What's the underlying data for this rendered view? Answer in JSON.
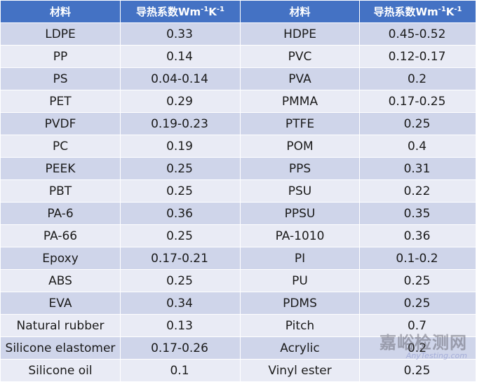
{
  "header": {
    "material_label": "材料",
    "conductivity_label": "导热系数Wm",
    "sup_m": "-1",
    "k_label": "K",
    "sup_k": "-1"
  },
  "rows": [
    {
      "left_material": "LDPE",
      "left_value": "0.33",
      "right_material": "HDPE",
      "right_value": "0.45-0.52"
    },
    {
      "left_material": "PP",
      "left_value": "0.14",
      "right_material": "PVC",
      "right_value": "0.12-0.17"
    },
    {
      "left_material": "PS",
      "left_value": "0.04-0.14",
      "right_material": "PVA",
      "right_value": "0.2"
    },
    {
      "left_material": "PET",
      "left_value": "0.29",
      "right_material": "PMMA",
      "right_value": "0.17-0.25"
    },
    {
      "left_material": "PVDF",
      "left_value": "0.19-0.23",
      "right_material": "PTFE",
      "right_value": "0.25"
    },
    {
      "left_material": "PC",
      "left_value": "0.19",
      "right_material": "POM",
      "right_value": "0.4"
    },
    {
      "left_material": "PEEK",
      "left_value": "0.25",
      "right_material": "PPS",
      "right_value": "0.31"
    },
    {
      "left_material": "PBT",
      "left_value": "0.25",
      "right_material": "PSU",
      "right_value": "0.22"
    },
    {
      "left_material": "PA-6",
      "left_value": "0.36",
      "right_material": "PPSU",
      "right_value": "0.35"
    },
    {
      "left_material": "PA-66",
      "left_value": "0.25",
      "right_material": "PA-1010",
      "right_value": "0.36"
    },
    {
      "left_material": "Epoxy",
      "left_value": "0.17-0.21",
      "right_material": "PI",
      "right_value": "0.1-0.2"
    },
    {
      "left_material": "ABS",
      "left_value": "0.25",
      "right_material": "PU",
      "right_value": "0.25"
    },
    {
      "left_material": "EVA",
      "left_value": "0.34",
      "right_material": "PDMS",
      "right_value": "0.25"
    },
    {
      "left_material": "Natural rubber",
      "left_value": "0.13",
      "right_material": "Pitch",
      "right_value": "0.7"
    },
    {
      "left_material": "Silicone elastomer",
      "left_value": "0.17-0.26",
      "right_material": "Acrylic",
      "right_value": "0.2"
    },
    {
      "left_material": "Silicone oil",
      "left_value": "0.1",
      "right_material": "Vinyl ester",
      "right_value": "0.25"
    }
  ],
  "watermark": {
    "name": "嘉峪检测网",
    "domain": "AnyTesting.com"
  },
  "colors": {
    "header_bg": "#4472c4",
    "row_dark": "#cfd5ea",
    "row_light": "#e9ebf5"
  }
}
